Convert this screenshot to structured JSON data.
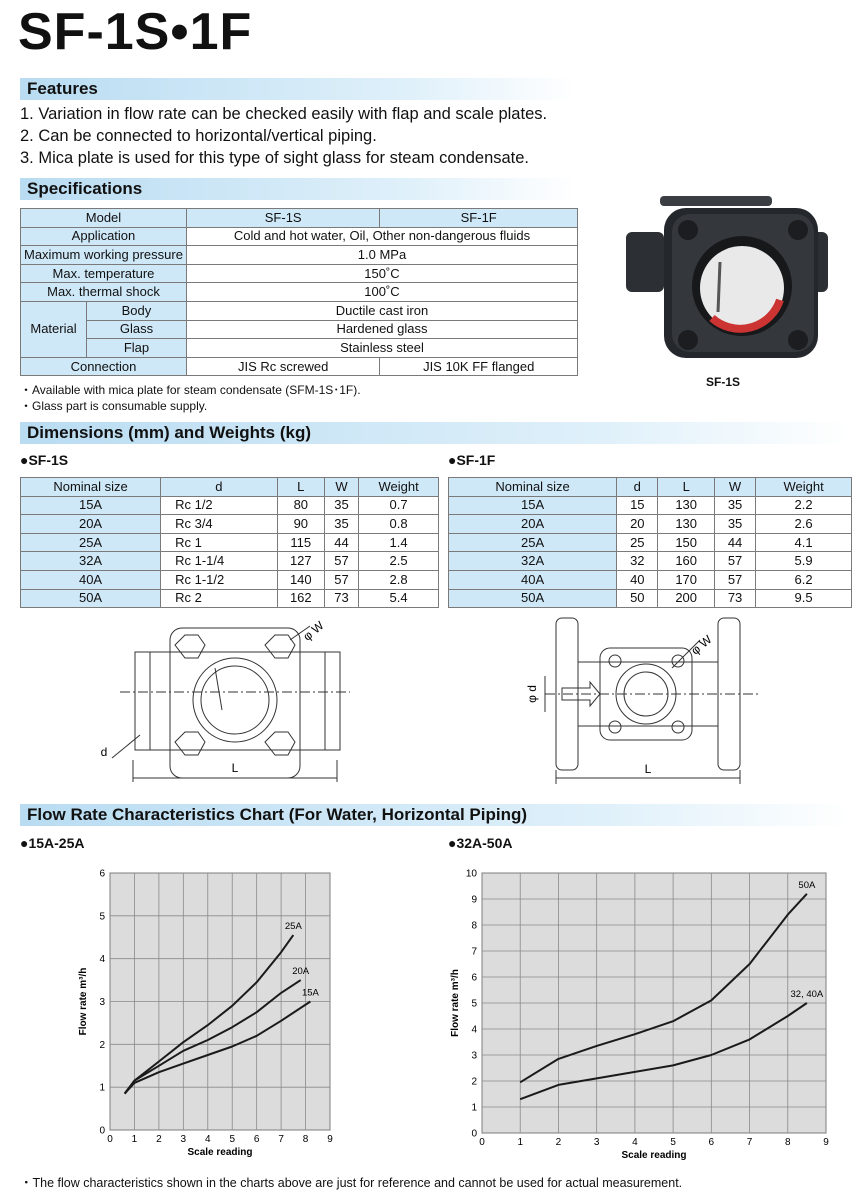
{
  "title": "SF-1S•1F",
  "features": {
    "heading": "Features",
    "items": [
      "1. Variation in flow rate can be checked easily with flap and scale plates.",
      "2. Can be connected to horizontal/vertical piping.",
      "3. Mica plate is used for this type of sight glass for steam condensate."
    ]
  },
  "specifications": {
    "heading": "Specifications",
    "rows": [
      [
        "Model",
        "SF-1S",
        "SF-1F"
      ],
      [
        "Application",
        "Cold and hot water, Oil, Other non-dangerous fluids"
      ],
      [
        "Maximum working pressure",
        "1.0 MPa"
      ],
      [
        "Max. temperature",
        "150˚C"
      ],
      [
        "Max. thermal shock",
        "100˚C"
      ],
      [
        "Material",
        "Body",
        "Ductile cast iron"
      ],
      [
        "Glass",
        "Hardened glass"
      ],
      [
        "Flap",
        "Stainless steel"
      ],
      [
        "Connection",
        "JIS Rc screwed",
        "JIS 10K FF flanged"
      ]
    ],
    "notes": [
      "・Available with mica plate for steam condensate (SFM-1S･1F).",
      "・Glass part is consumable supply."
    ],
    "photo_caption": "SF-1S"
  },
  "dimensions": {
    "heading": "Dimensions (mm) and Weights (kg)",
    "tables": [
      {
        "label": "●SF-1S",
        "header": [
          "Nominal size",
          "d",
          "L",
          "W",
          "Weight"
        ],
        "rows": [
          [
            "15A",
            "Rc 1/2",
            80,
            35,
            0.7
          ],
          [
            "20A",
            "Rc 3/4",
            90,
            35,
            0.8
          ],
          [
            "25A",
            "Rc 1",
            115,
            44,
            1.4
          ],
          [
            "32A",
            "Rc 1-1/4",
            127,
            57,
            2.5
          ],
          [
            "40A",
            "Rc 1-1/2",
            140,
            57,
            2.8
          ],
          [
            "50A",
            "Rc 2",
            162,
            73,
            5.4
          ]
        ]
      },
      {
        "label": "●SF-1F",
        "header": [
          "Nominal size",
          "d",
          "L",
          "W",
          "Weight"
        ],
        "rows": [
          [
            "15A",
            15,
            130,
            35,
            2.2
          ],
          [
            "20A",
            20,
            130,
            35,
            2.6
          ],
          [
            "25A",
            25,
            150,
            44,
            4.1
          ],
          [
            "32A",
            32,
            160,
            57,
            5.9
          ],
          [
            "40A",
            40,
            170,
            57,
            6.2
          ],
          [
            "50A",
            50,
            200,
            73,
            9.5
          ]
        ]
      }
    ],
    "drawings": {
      "sf1s": {
        "phi_w": "φ W",
        "d": "d",
        "length": "L"
      },
      "sf1f": {
        "phi_w": "φ W",
        "phi_d": "φ d",
        "length": "L"
      }
    }
  },
  "flow": {
    "heading": "Flow Rate Characteristics Chart (For Water, Horizontal Piping)",
    "footnote": "・The flow characteristics shown in the charts above are just for reference and cannot be used for actual measurement."
  },
  "chart_data": [
    {
      "type": "line",
      "subtitle": "●15A-25A",
      "x_label": "Scale reading",
      "y_label": "Flow rate m³/h",
      "xlim": [
        0,
        9
      ],
      "ylim": [
        0,
        6
      ],
      "xticks": [
        0,
        1,
        2,
        3,
        4,
        5,
        6,
        7,
        8,
        9
      ],
      "yticks": [
        0,
        1,
        2,
        3,
        4,
        5,
        6
      ],
      "grid": true,
      "series": [
        {
          "name": "25A",
          "color": "#1a1a1a",
          "x": [
            0.6,
            1,
            2,
            3,
            4,
            5,
            6,
            7,
            7.5
          ],
          "values": [
            0.85,
            1.15,
            1.6,
            2.05,
            2.45,
            2.9,
            3.45,
            4.15,
            4.55
          ]
        },
        {
          "name": "20A",
          "color": "#1a1a1a",
          "x": [
            0.6,
            1,
            2,
            3,
            4,
            5,
            6,
            7,
            7.8
          ],
          "values": [
            0.85,
            1.15,
            1.5,
            1.85,
            2.1,
            2.4,
            2.75,
            3.2,
            3.5
          ]
        },
        {
          "name": "15A",
          "color": "#1a1a1a",
          "x": [
            0.6,
            1,
            2,
            3,
            4,
            5,
            6,
            7,
            8.2
          ],
          "values": [
            0.85,
            1.1,
            1.35,
            1.55,
            1.75,
            1.95,
            2.2,
            2.55,
            3.0
          ]
        }
      ]
    },
    {
      "type": "line",
      "subtitle": "●32A-50A",
      "x_label": "Scale reading",
      "y_label": "Flow rate m³/h",
      "xlim": [
        0,
        9
      ],
      "ylim": [
        0,
        10
      ],
      "xticks": [
        0,
        1,
        2,
        3,
        4,
        5,
        6,
        7,
        8,
        9
      ],
      "yticks": [
        0,
        1,
        2,
        3,
        4,
        5,
        6,
        7,
        8,
        9,
        10
      ],
      "grid": true,
      "series": [
        {
          "name": "50A",
          "color": "#1a1a1a",
          "x": [
            1,
            2,
            3,
            4,
            5,
            6,
            7,
            8,
            8.5
          ],
          "values": [
            1.95,
            2.85,
            3.35,
            3.8,
            4.3,
            5.1,
            6.5,
            8.4,
            9.2
          ]
        },
        {
          "name": "32, 40A",
          "color": "#1a1a1a",
          "x": [
            1,
            2,
            3,
            4,
            5,
            6,
            7,
            8,
            8.5
          ],
          "values": [
            1.3,
            1.85,
            2.1,
            2.35,
            2.6,
            3.0,
            3.6,
            4.5,
            5.0
          ]
        }
      ]
    }
  ]
}
